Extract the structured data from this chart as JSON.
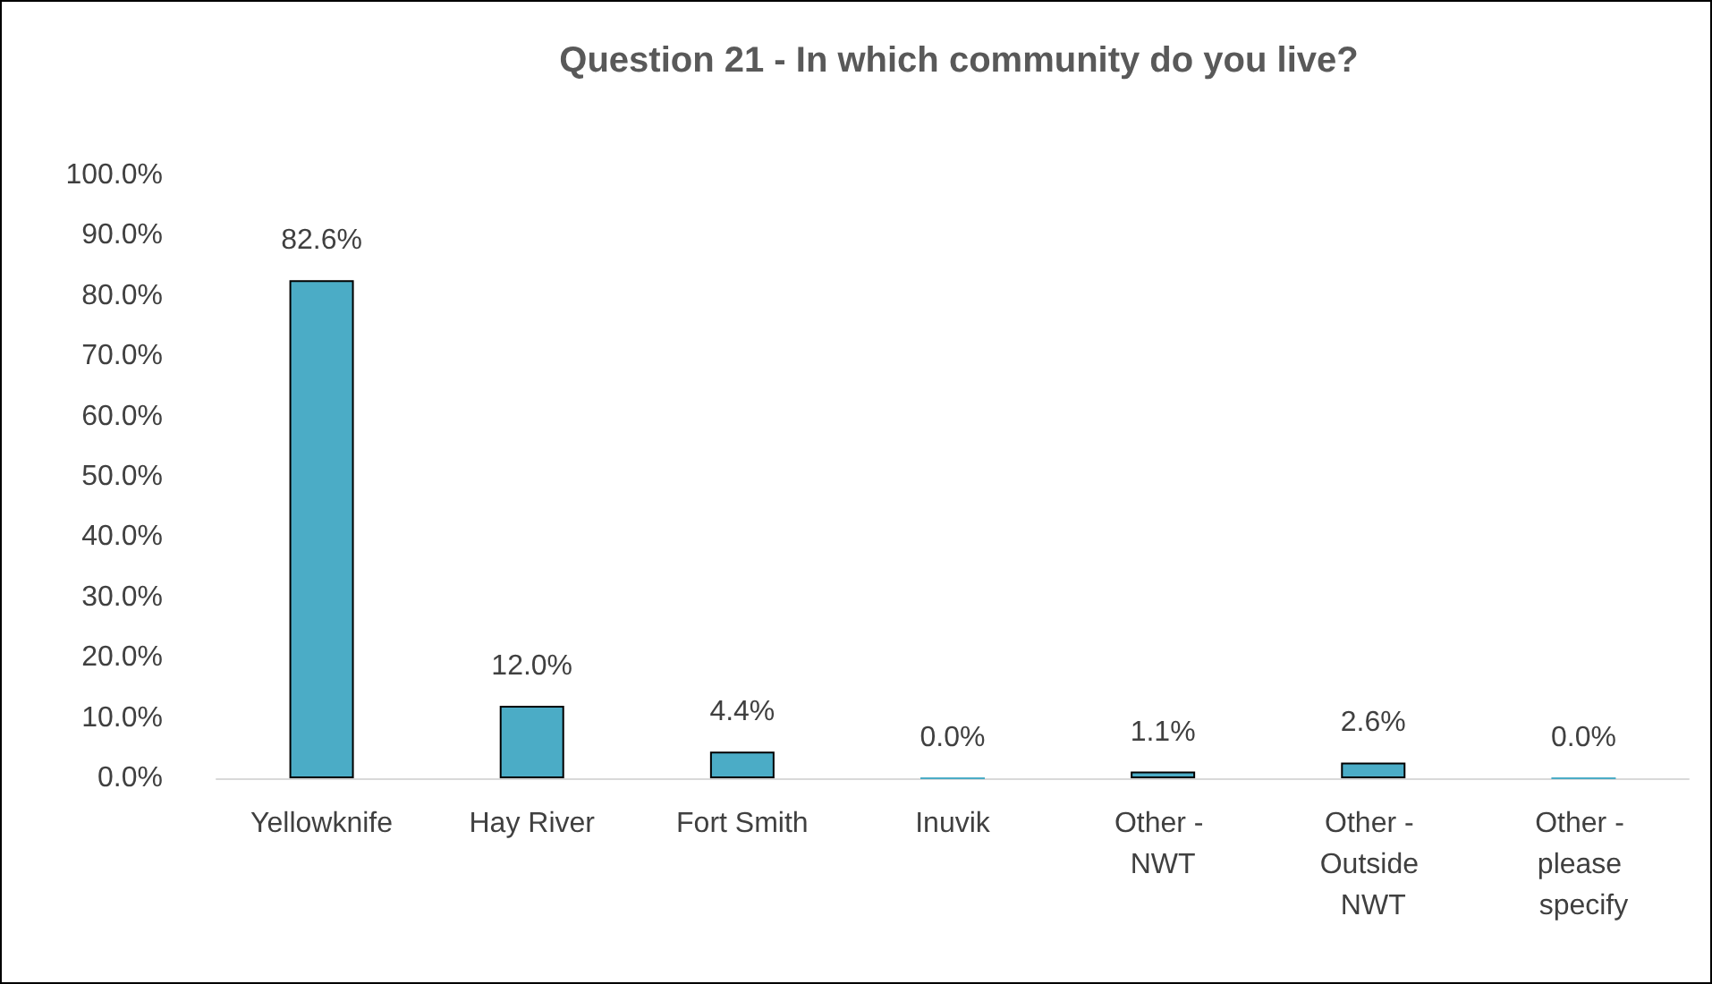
{
  "chart_data": {
    "type": "bar",
    "title": "Question 21 - In which community do you live?",
    "categories": [
      "Yellowknife",
      "Hay River",
      "Fort Smith",
      "Inuvik",
      "Other - NWT",
      "Other - Outside NWT",
      "Other - please specify"
    ],
    "values": [
      82.6,
      12.0,
      4.4,
      0.0,
      1.1,
      2.6,
      0.0
    ],
    "value_labels": [
      "82.6%",
      "12.0%",
      "4.4%",
      "0.0%",
      "1.1%",
      "2.6%",
      "0.0%"
    ],
    "color": "#4bacc6",
    "ylim": [
      0,
      100
    ],
    "yticks": [
      {
        "value": 0,
        "label": "0.0%"
      },
      {
        "value": 10,
        "label": "10.0%"
      },
      {
        "value": 20,
        "label": "20.0%"
      },
      {
        "value": 30,
        "label": "30.0%"
      },
      {
        "value": 40,
        "label": "40.0%"
      },
      {
        "value": 50,
        "label": "50.0%"
      },
      {
        "value": 60,
        "label": "60.0%"
      },
      {
        "value": 70,
        "label": "70.0%"
      },
      {
        "value": 80,
        "label": "80.0%"
      },
      {
        "value": 90,
        "label": "90.0%"
      },
      {
        "value": 100,
        "label": "100.0%"
      }
    ],
    "grid": false
  }
}
